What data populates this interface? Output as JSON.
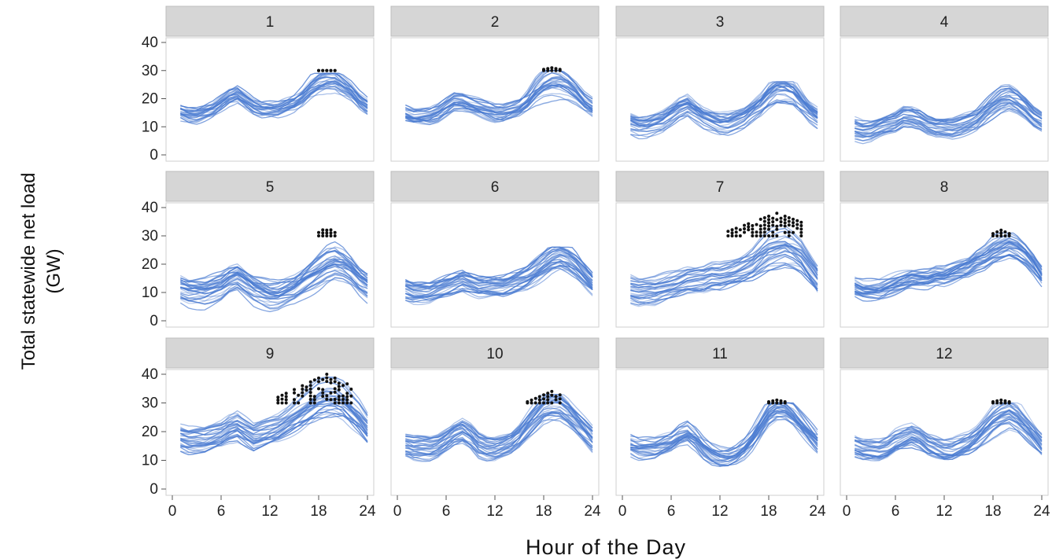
{
  "chart_data": {
    "type": "line",
    "layout": "small-multiples",
    "panel_labels": [
      "1",
      "2",
      "3",
      "4",
      "5",
      "6",
      "7",
      "8",
      "9",
      "10",
      "11",
      "12"
    ],
    "xlabel": "Hour of the Day",
    "ylabel_lines": [
      "Total statewide net load",
      "(GW)"
    ],
    "xlim": [
      0,
      24
    ],
    "ylim": [
      0,
      40
    ],
    "xticks": [
      "0",
      "6",
      "12",
      "18",
      "24"
    ],
    "yticks": [
      "0",
      "10",
      "20",
      "30",
      "40"
    ],
    "series_color": "#4a7bd1",
    "marker_color": "#111111",
    "marker_threshold": 30,
    "panels": [
      {
        "label": "1",
        "lines": 26,
        "median": [
          15,
          14,
          14,
          15,
          16,
          18,
          20,
          21,
          19,
          17,
          16,
          16,
          16,
          17,
          18,
          20,
          23,
          25,
          26,
          26,
          24,
          22,
          19,
          17
        ],
        "spread": 2.5,
        "peak_max": 30
      },
      {
        "label": "2",
        "lines": 26,
        "median": [
          15,
          14,
          14,
          14,
          15,
          17,
          19,
          19,
          18,
          17,
          16,
          15,
          15,
          16,
          17,
          19,
          22,
          24,
          25,
          25,
          24,
          22,
          19,
          17
        ],
        "spread": 2.5,
        "peak_max": 31
      },
      {
        "label": "3",
        "lines": 28,
        "median": [
          11,
          10,
          10,
          11,
          12,
          14,
          16,
          17,
          15,
          13,
          12,
          11,
          11,
          12,
          13,
          15,
          17,
          20,
          22,
          22,
          21,
          18,
          15,
          13
        ],
        "spread": 3.5,
        "peak_max": 27
      },
      {
        "label": "4",
        "lines": 28,
        "median": [
          10,
          9,
          9,
          10,
          11,
          12,
          14,
          14,
          13,
          11,
          10,
          10,
          10,
          11,
          12,
          13,
          15,
          17,
          19,
          20,
          19,
          17,
          14,
          12
        ],
        "spread": 3.5,
        "peak_max": 26
      },
      {
        "label": "5",
        "lines": 30,
        "median": [
          11,
          10,
          10,
          10,
          11,
          12,
          14,
          15,
          13,
          11,
          10,
          9,
          9,
          10,
          11,
          13,
          15,
          17,
          19,
          20,
          19,
          17,
          14,
          12
        ],
        "spread": 5,
        "peak_max": 33
      },
      {
        "label": "6",
        "lines": 30,
        "median": [
          11,
          10,
          10,
          10,
          11,
          12,
          13,
          14,
          13,
          12,
          12,
          12,
          12,
          13,
          14,
          15,
          17,
          19,
          21,
          22,
          21,
          19,
          16,
          13
        ],
        "spread": 3.5,
        "peak_max": 27
      },
      {
        "label": "7",
        "lines": 30,
        "median": [
          12,
          11,
          11,
          11,
          12,
          13,
          14,
          15,
          15,
          15,
          16,
          16,
          17,
          18,
          19,
          20,
          22,
          24,
          25,
          26,
          25,
          23,
          19,
          15
        ],
        "spread": 5,
        "peak_max": 38
      },
      {
        "label": "8",
        "lines": 30,
        "median": [
          12,
          11,
          11,
          11,
          12,
          13,
          14,
          15,
          15,
          15,
          16,
          16,
          17,
          18,
          19,
          21,
          22,
          24,
          25,
          26,
          25,
          23,
          20,
          16
        ],
        "spread": 3.5,
        "peak_max": 32
      },
      {
        "label": "9",
        "lines": 30,
        "median": [
          18,
          17,
          17,
          17,
          18,
          19,
          21,
          22,
          20,
          18,
          19,
          20,
          21,
          23,
          25,
          27,
          29,
          31,
          32,
          32,
          31,
          28,
          25,
          21
        ],
        "spread": 4,
        "peak_max": 40
      },
      {
        "label": "10",
        "lines": 30,
        "median": [
          15,
          14,
          14,
          14,
          15,
          17,
          19,
          20,
          18,
          15,
          14,
          14,
          15,
          16,
          18,
          21,
          24,
          27,
          28,
          28,
          26,
          23,
          20,
          17
        ],
        "spread": 4,
        "peak_max": 34
      },
      {
        "label": "11",
        "lines": 28,
        "median": [
          15,
          14,
          14,
          14,
          15,
          16,
          18,
          19,
          17,
          14,
          12,
          11,
          11,
          12,
          14,
          17,
          21,
          25,
          27,
          27,
          25,
          22,
          19,
          16
        ],
        "spread": 3.5,
        "peak_max": 31
      },
      {
        "label": "12",
        "lines": 28,
        "median": [
          15,
          14,
          14,
          14,
          15,
          17,
          18,
          19,
          18,
          16,
          15,
          14,
          14,
          15,
          16,
          18,
          21,
          24,
          26,
          27,
          25,
          22,
          19,
          16
        ],
        "spread": 3.5,
        "peak_max": 31
      }
    ]
  }
}
